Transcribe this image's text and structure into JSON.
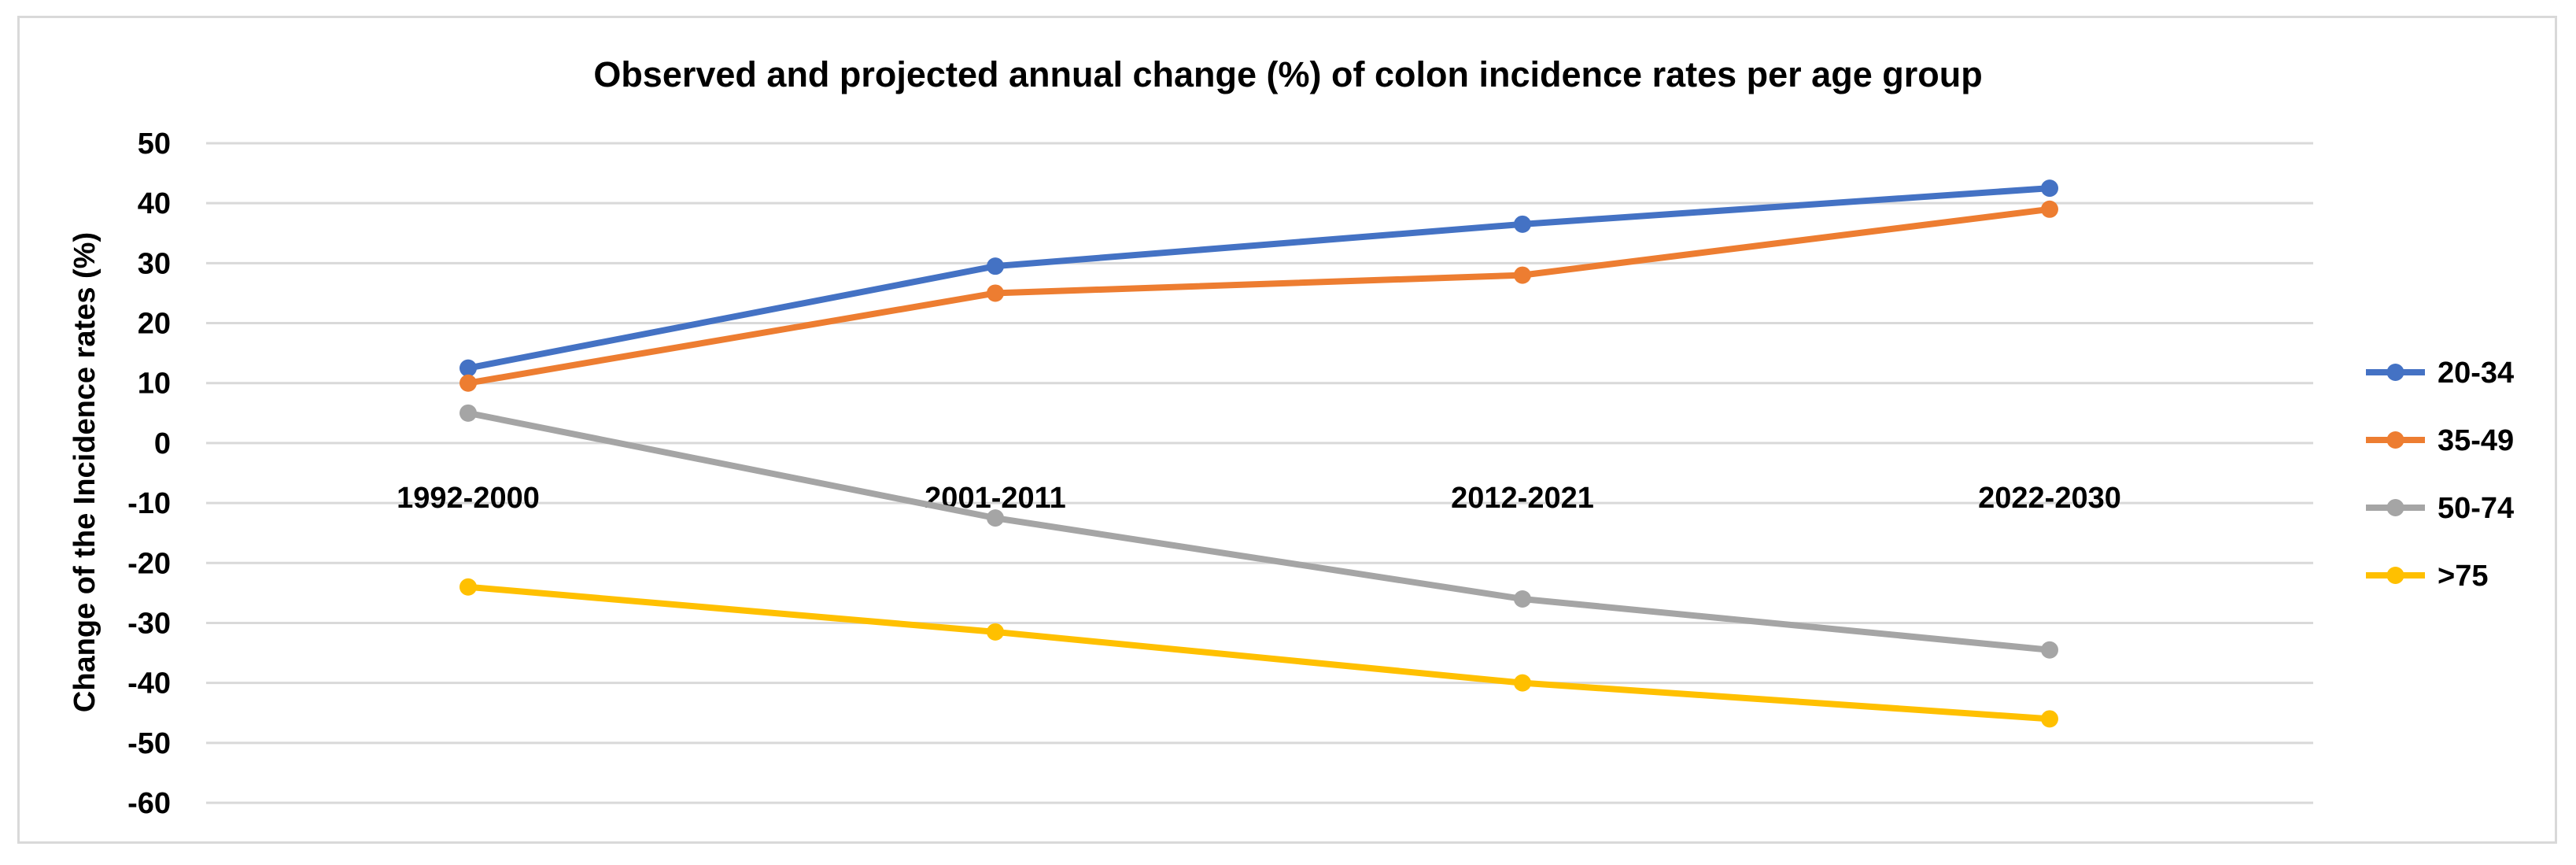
{
  "chart_data": {
    "type": "line",
    "title": "Observed and projected annual change (%) of colon incidence rates per age group",
    "xlabel": "",
    "ylabel": "Change of the Incidence rates (%)",
    "categories": [
      "1992-2000",
      "2001-2011",
      "2012-2021",
      "2022-2030"
    ],
    "ylim": [
      -60,
      50
    ],
    "yticks": [
      50,
      40,
      30,
      20,
      10,
      0,
      -10,
      -20,
      -30,
      -40,
      -50,
      -60
    ],
    "grid": true,
    "legend_position": "right",
    "series": [
      {
        "name": "20-34",
        "color": "#4472c4",
        "values": [
          12.5,
          29.5,
          36.5,
          42.5
        ]
      },
      {
        "name": "35-49",
        "color": "#ed7d31",
        "values": [
          10,
          25,
          28,
          39
        ]
      },
      {
        "name": "50-74",
        "color": "#a5a5a5",
        "values": [
          5,
          -12.5,
          -26,
          -34.5
        ]
      },
      {
        "name": ">75",
        "color": "#ffc000",
        "values": [
          -24,
          -31.5,
          -40,
          -46
        ]
      }
    ]
  }
}
